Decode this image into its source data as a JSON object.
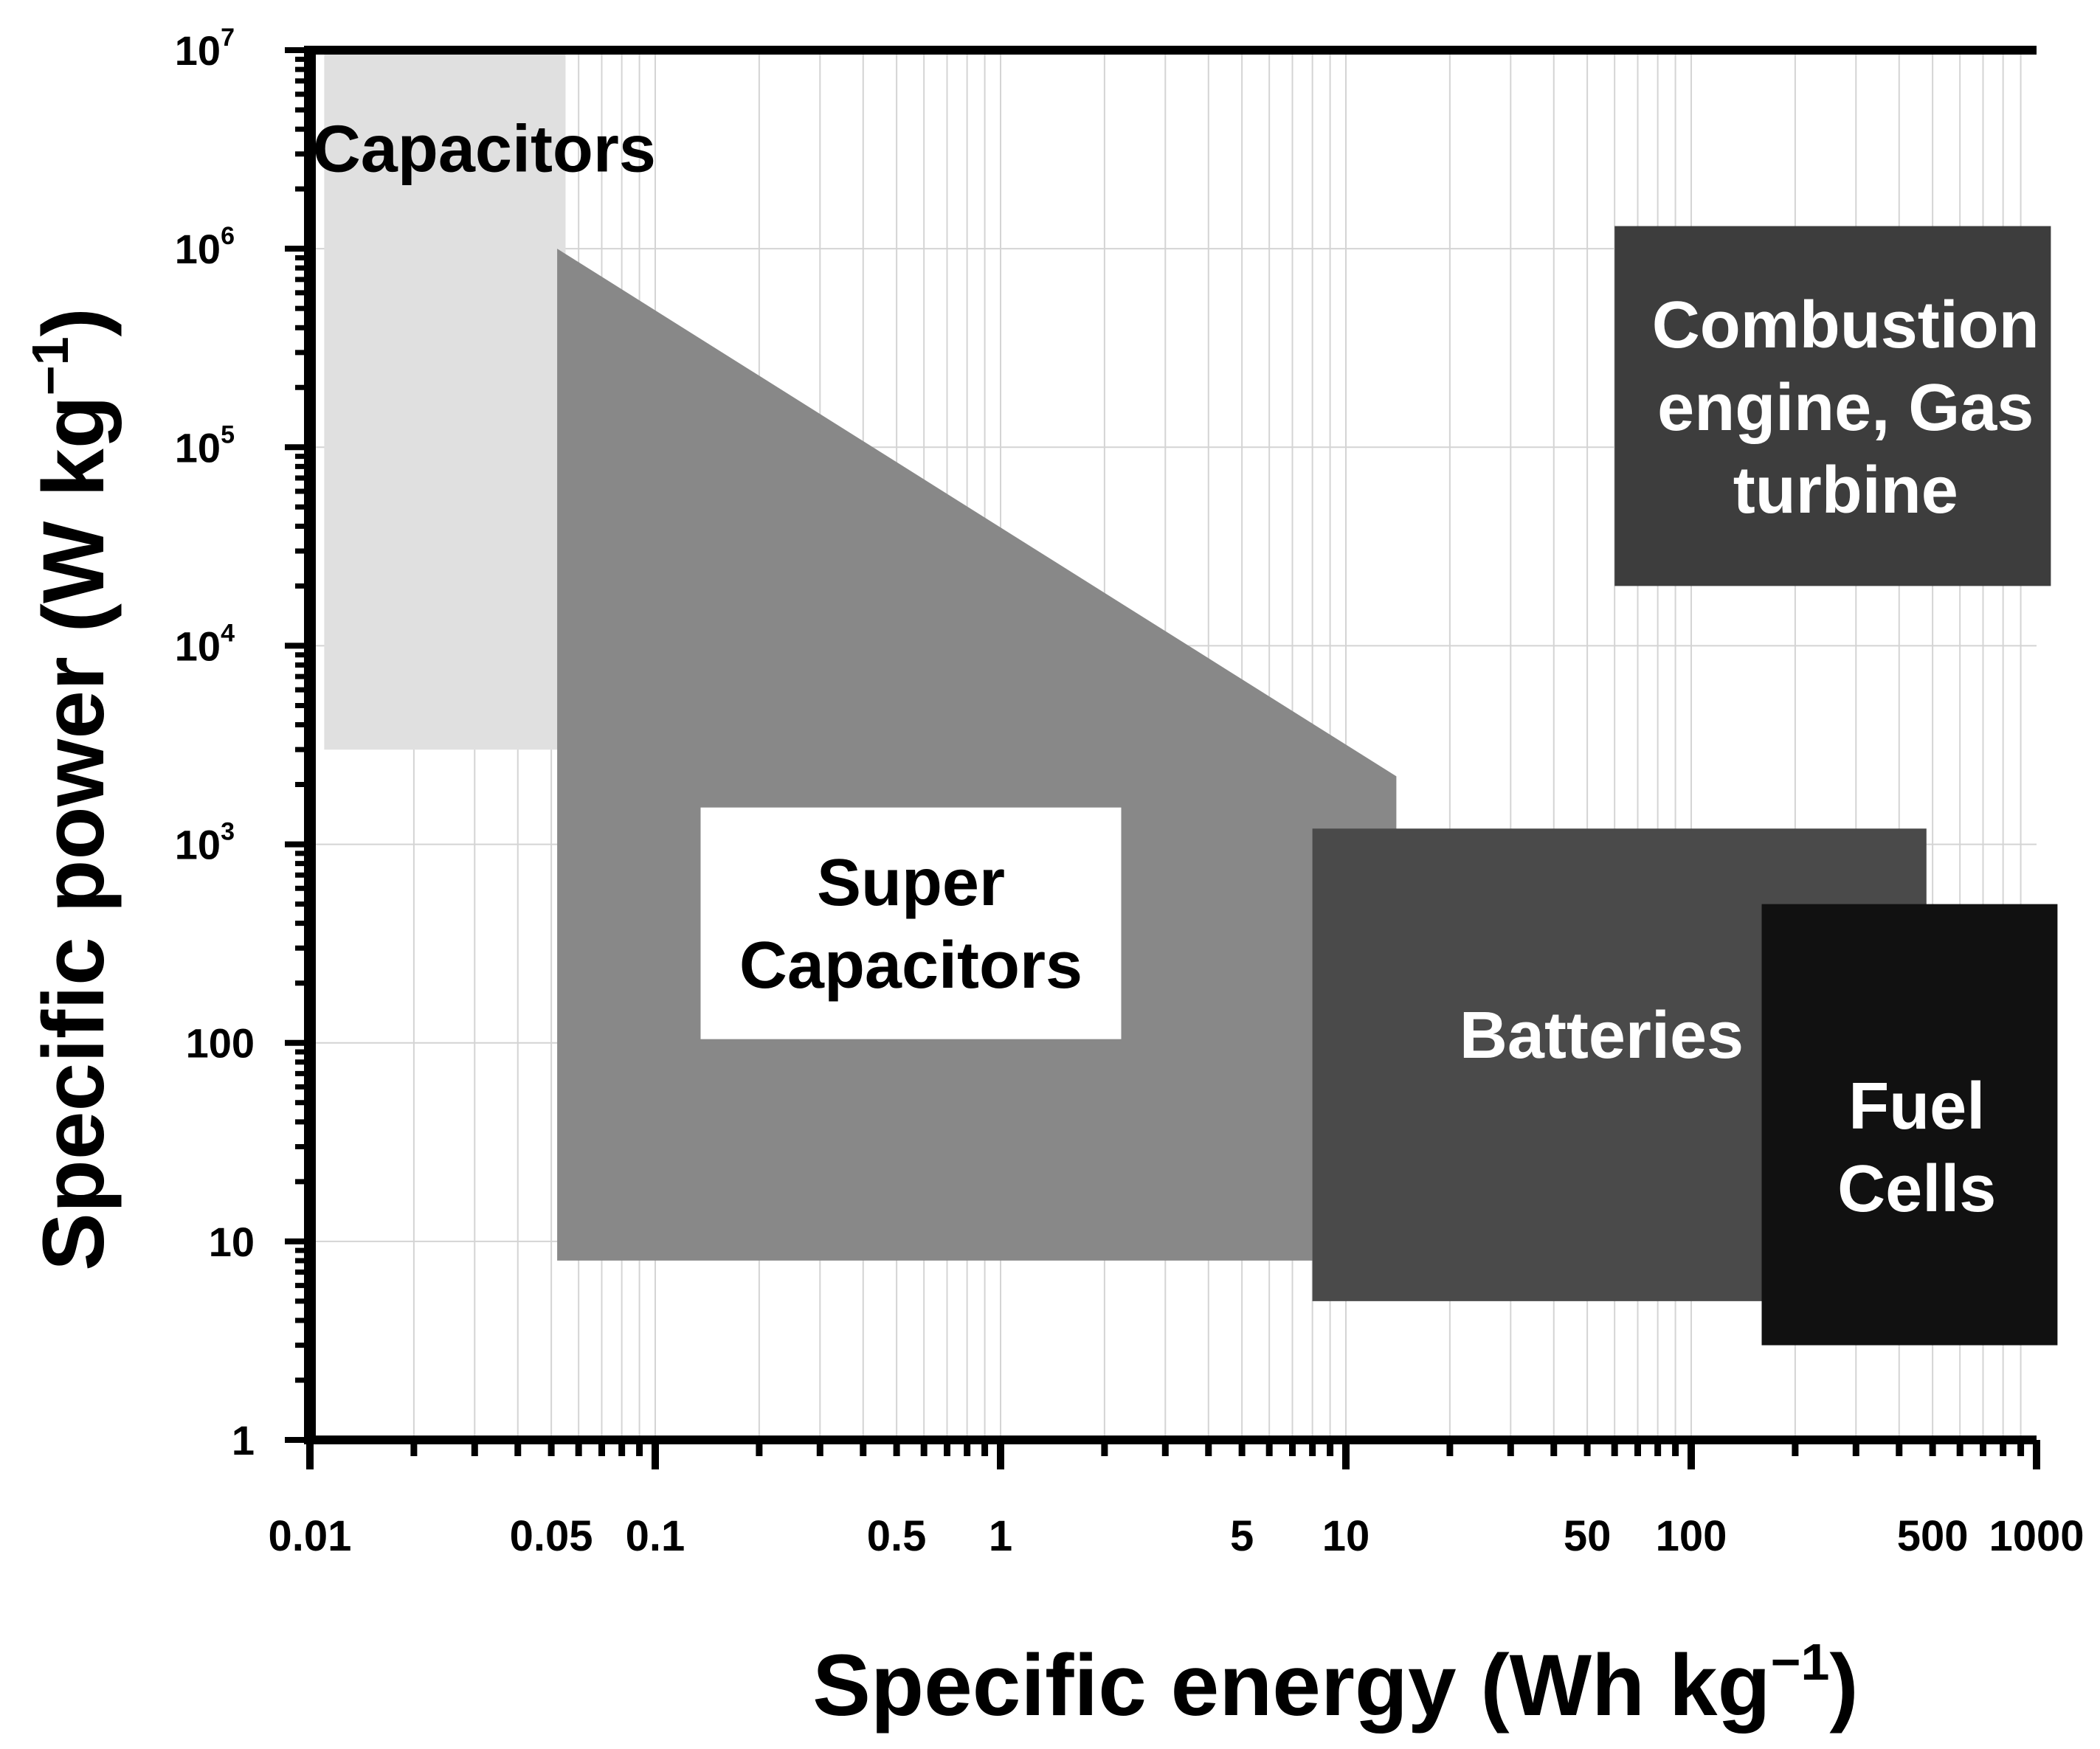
{
  "chart_data": {
    "type": "region",
    "xscale": "log",
    "yscale": "log",
    "xlim": [
      0.01,
      1000
    ],
    "ylim": [
      1,
      10000000
    ],
    "xlabel": "Specific energy (Wh kg",
    "xlabel_sup": "−1",
    "xlabel_close": ")",
    "ylabel": "Specific power (W kg",
    "ylabel_sup": "−1",
    "ylabel_close": ")",
    "x_ticks": [
      {
        "value": 0.01,
        "label": "0.01"
      },
      {
        "value": 0.05,
        "label": "0.05"
      },
      {
        "value": 0.1,
        "label": "0.1"
      },
      {
        "value": 0.5,
        "label": "0.5"
      },
      {
        "value": 1,
        "label": "1"
      },
      {
        "value": 5,
        "label": "5"
      },
      {
        "value": 10,
        "label": "10"
      },
      {
        "value": 50,
        "label": "50"
      },
      {
        "value": 100,
        "label": "100"
      },
      {
        "value": 500,
        "label": "500"
      },
      {
        "value": 1000,
        "label": "1000"
      }
    ],
    "y_ticks": [
      {
        "value": 1,
        "label": "1",
        "exp": ""
      },
      {
        "value": 10,
        "label": "10",
        "exp": ""
      },
      {
        "value": 100,
        "label": "100",
        "exp": ""
      },
      {
        "value": 1000,
        "label": "10",
        "exp": "3"
      },
      {
        "value": 10000,
        "label": "10",
        "exp": "4"
      },
      {
        "value": 100000,
        "label": "10",
        "exp": "5"
      },
      {
        "value": 1000000,
        "label": "10",
        "exp": "6"
      },
      {
        "value": 10000000,
        "label": "10",
        "exp": "7"
      }
    ],
    "grid": true,
    "regions": [
      {
        "name": "capacitors",
        "label_lines": [
          "Capacitors"
        ],
        "fill": "#e0e0e0",
        "text_color": "#000000",
        "polygon": [
          [
            0.011,
            3000
          ],
          [
            0.055,
            3000
          ],
          [
            0.055,
            10000000
          ],
          [
            0.011,
            10000000
          ]
        ],
        "label_at": [
          0.032,
          3200000
        ],
        "label_box": false
      },
      {
        "name": "super-capacitors",
        "label_lines": [
          "Super",
          "Capacitors"
        ],
        "fill": "#888888",
        "text_color": "#000000",
        "polygon": [
          [
            0.052,
            1000000
          ],
          [
            14,
            2200
          ],
          [
            14,
            8
          ],
          [
            0.052,
            8
          ]
        ],
        "label_at": [
          0.55,
          400
        ],
        "label_box": true
      },
      {
        "name": "batteries",
        "label_lines": [
          "Batteries"
        ],
        "fill": "#4a4a4a",
        "text_color": "#ffffff",
        "polygon": [
          [
            8,
            5
          ],
          [
            480,
            5
          ],
          [
            480,
            1200
          ],
          [
            8,
            1200
          ]
        ],
        "label_at": [
          55,
          110
        ],
        "label_box": false
      },
      {
        "name": "fuel-cells",
        "label_lines": [
          "Fuel",
          "Cells"
        ],
        "fill": "#111111",
        "text_color": "#ffffff",
        "polygon": [
          [
            160,
            3
          ],
          [
            1150,
            3
          ],
          [
            1150,
            500
          ],
          [
            160,
            500
          ]
        ],
        "label_at": [
          450,
          30
        ],
        "label_box": false
      },
      {
        "name": "combustion-engine-gas-turbine",
        "label_lines": [
          "Combustion",
          "engine, Gas",
          "turbine"
        ],
        "fill": "#3d3d3d",
        "text_color": "#ffffff",
        "polygon": [
          [
            60,
            20000
          ],
          [
            1100,
            20000
          ],
          [
            1100,
            1300000
          ],
          [
            60,
            1300000
          ]
        ],
        "label_at": [
          280,
          160000
        ],
        "label_box": false
      }
    ]
  }
}
